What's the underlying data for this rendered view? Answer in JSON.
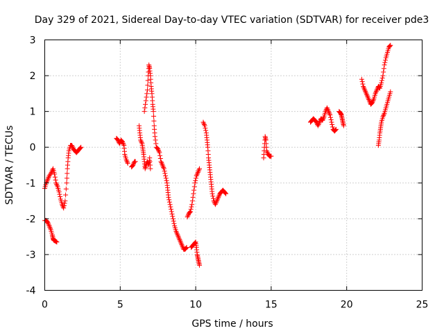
{
  "chart_data": {
    "type": "scatter",
    "title": "Day 329 of 2021, Sidereal Day-to-day VTEC variation (SDTVAR) for receiver pde3",
    "xlabel": "GPS time / hours",
    "ylabel": "SDTVAR / TECUs",
    "xlim": [
      0,
      25
    ],
    "ylim": [
      -4,
      3
    ],
    "xticks": [
      0,
      5,
      10,
      15,
      20,
      25
    ],
    "yticks": [
      -4,
      -3,
      -2,
      -1,
      0,
      1,
      2,
      3
    ],
    "xtick_labels": [
      "0",
      "5",
      "10",
      "15",
      "20",
      "25"
    ],
    "ytick_labels": [
      "-4",
      "-3",
      "-2",
      "-1",
      "0",
      "1",
      "2",
      "3"
    ],
    "grid": true,
    "marker": "+",
    "color": "#ff0000",
    "series": [
      {
        "name": "SDTVAR",
        "segments": [
          [
            [
              0.0,
              -1.15
            ],
            [
              0.1,
              -1.0
            ],
            [
              0.2,
              -0.9
            ],
            [
              0.3,
              -0.8
            ],
            [
              0.45,
              -0.7
            ],
            [
              0.55,
              -0.6
            ],
            [
              0.65,
              -0.75
            ],
            [
              0.75,
              -1.0
            ],
            [
              0.85,
              -1.1
            ],
            [
              0.95,
              -1.25
            ],
            [
              1.05,
              -1.45
            ],
            [
              1.15,
              -1.6
            ],
            [
              1.25,
              -1.7
            ],
            [
              1.35,
              -1.5
            ],
            [
              1.45,
              -1.0
            ],
            [
              1.5,
              -0.6
            ],
            [
              1.55,
              -0.3
            ],
            [
              1.6,
              -0.1
            ],
            [
              1.7,
              0.05
            ],
            [
              1.8,
              0.05
            ],
            [
              1.9,
              -0.05
            ],
            [
              2.0,
              -0.1
            ],
            [
              2.1,
              -0.15
            ],
            [
              2.2,
              -0.1
            ],
            [
              2.3,
              -0.05
            ],
            [
              2.4,
              0.0
            ]
          ],
          [
            [
              0.0,
              -2.05
            ],
            [
              0.1,
              -2.05
            ],
            [
              0.2,
              -2.1
            ],
            [
              0.3,
              -2.2
            ],
            [
              0.4,
              -2.3
            ],
            [
              0.5,
              -2.45
            ],
            [
              0.55,
              -2.55
            ],
            [
              0.6,
              -2.6
            ],
            [
              0.7,
              -2.62
            ],
            [
              0.8,
              -2.65
            ]
          ],
          [
            [
              4.75,
              0.25
            ],
            [
              4.85,
              0.2
            ],
            [
              4.95,
              0.1
            ],
            [
              5.05,
              0.2
            ],
            [
              5.15,
              0.15
            ],
            [
              5.25,
              0.05
            ],
            [
              5.3,
              -0.2
            ],
            [
              5.4,
              -0.35
            ],
            [
              5.5,
              -0.45
            ]
          ],
          [
            [
              5.75,
              -0.55
            ],
            [
              5.85,
              -0.5
            ],
            [
              5.95,
              -0.4
            ],
            [
              6.0,
              -0.4
            ]
          ],
          [
            [
              6.25,
              0.6
            ],
            [
              6.3,
              0.4
            ],
            [
              6.35,
              0.2
            ],
            [
              6.45,
              0.1
            ],
            [
              6.5,
              -0.05
            ],
            [
              6.55,
              -0.2
            ],
            [
              6.6,
              -0.4
            ],
            [
              6.65,
              -0.6
            ],
            [
              6.7,
              -0.5
            ],
            [
              6.8,
              -0.4
            ],
            [
              6.9,
              -0.5
            ],
            [
              6.95,
              -0.3
            ],
            [
              7.0,
              -0.6
            ]
          ],
          [
            [
              6.6,
              1.0
            ],
            [
              6.7,
              1.3
            ],
            [
              6.8,
              1.6
            ],
            [
              6.85,
              2.0
            ],
            [
              6.9,
              2.3
            ],
            [
              6.95,
              2.2
            ],
            [
              7.0,
              2.0
            ],
            [
              7.05,
              1.7
            ],
            [
              7.1,
              1.5
            ],
            [
              7.15,
              1.2
            ],
            [
              7.2,
              1.0
            ],
            [
              7.25,
              0.6
            ],
            [
              7.3,
              0.3
            ],
            [
              7.4,
              0.0
            ],
            [
              7.5,
              -0.05
            ],
            [
              7.6,
              -0.15
            ],
            [
              7.7,
              -0.4
            ],
            [
              7.8,
              -0.5
            ],
            [
              7.9,
              -0.6
            ],
            [
              8.0,
              -0.8
            ],
            [
              8.1,
              -1.0
            ],
            [
              8.15,
              -1.2
            ],
            [
              8.2,
              -1.4
            ],
            [
              8.3,
              -1.6
            ],
            [
              8.4,
              -1.8
            ],
            [
              8.5,
              -2.0
            ],
            [
              8.6,
              -2.2
            ],
            [
              8.7,
              -2.35
            ],
            [
              8.8,
              -2.45
            ],
            [
              8.9,
              -2.55
            ],
            [
              9.0,
              -2.65
            ],
            [
              9.1,
              -2.75
            ],
            [
              9.2,
              -2.85
            ],
            [
              9.3,
              -2.85
            ],
            [
              9.4,
              -2.8
            ]
          ],
          [
            [
              9.45,
              -1.95
            ],
            [
              9.55,
              -1.85
            ],
            [
              9.65,
              -1.8
            ],
            [
              9.75,
              -1.6
            ],
            [
              9.85,
              -1.3
            ],
            [
              9.95,
              -1.0
            ],
            [
              10.05,
              -0.8
            ],
            [
              10.15,
              -0.7
            ],
            [
              10.25,
              -0.6
            ]
          ],
          [
            [
              9.7,
              -2.8
            ],
            [
              9.8,
              -2.75
            ],
            [
              9.9,
              -2.7
            ],
            [
              10.0,
              -2.65
            ],
            [
              10.05,
              -2.8
            ],
            [
              10.1,
              -3.0
            ],
            [
              10.15,
              -3.1
            ],
            [
              10.2,
              -3.2
            ],
            [
              10.25,
              -3.3
            ]
          ],
          [
            [
              10.5,
              0.7
            ],
            [
              10.6,
              0.6
            ],
            [
              10.7,
              0.4
            ],
            [
              10.75,
              0.2
            ],
            [
              10.8,
              0.0
            ],
            [
              10.85,
              -0.3
            ],
            [
              10.9,
              -0.5
            ],
            [
              10.95,
              -0.7
            ],
            [
              11.0,
              -0.9
            ],
            [
              11.05,
              -1.1
            ],
            [
              11.1,
              -1.3
            ],
            [
              11.2,
              -1.5
            ],
            [
              11.3,
              -1.6
            ],
            [
              11.4,
              -1.5
            ],
            [
              11.5,
              -1.4
            ],
            [
              11.6,
              -1.3
            ],
            [
              11.7,
              -1.25
            ],
            [
              11.8,
              -1.2
            ],
            [
              11.9,
              -1.25
            ],
            [
              12.0,
              -1.3
            ]
          ],
          [
            [
              14.5,
              -0.3
            ],
            [
              14.55,
              0.0
            ],
            [
              14.6,
              0.3
            ],
            [
              14.65,
              0.2
            ],
            [
              14.7,
              -0.1
            ],
            [
              14.8,
              -0.2
            ],
            [
              14.9,
              -0.25
            ],
            [
              15.0,
              -0.25
            ]
          ],
          [
            [
              17.6,
              0.7
            ],
            [
              17.7,
              0.75
            ],
            [
              17.8,
              0.8
            ],
            [
              17.9,
              0.75
            ],
            [
              18.0,
              0.7
            ],
            [
              18.1,
              0.6
            ],
            [
              18.2,
              0.7
            ],
            [
              18.3,
              0.8
            ],
            [
              18.4,
              0.75
            ],
            [
              18.5,
              0.85
            ],
            [
              18.6,
              1.0
            ],
            [
              18.7,
              1.1
            ],
            [
              18.8,
              1.0
            ],
            [
              18.9,
              0.9
            ],
            [
              19.0,
              0.7
            ],
            [
              19.1,
              0.5
            ],
            [
              19.2,
              0.45
            ],
            [
              19.3,
              0.5
            ]
          ],
          [
            [
              19.5,
              1.0
            ],
            [
              19.6,
              0.95
            ],
            [
              19.65,
              0.9
            ],
            [
              19.7,
              0.8
            ],
            [
              19.75,
              0.7
            ],
            [
              19.8,
              0.6
            ]
          ],
          [
            [
              21.0,
              1.9
            ],
            [
              21.1,
              1.7
            ],
            [
              21.2,
              1.6
            ],
            [
              21.3,
              1.5
            ],
            [
              21.4,
              1.4
            ],
            [
              21.5,
              1.3
            ],
            [
              21.6,
              1.2
            ],
            [
              21.7,
              1.25
            ],
            [
              21.8,
              1.35
            ],
            [
              21.9,
              1.5
            ],
            [
              22.0,
              1.6
            ],
            [
              22.1,
              1.7
            ],
            [
              22.2,
              1.65
            ],
            [
              22.3,
              1.8
            ],
            [
              22.4,
              2.0
            ],
            [
              22.5,
              2.3
            ],
            [
              22.6,
              2.5
            ],
            [
              22.7,
              2.65
            ],
            [
              22.8,
              2.8
            ],
            [
              22.9,
              2.85
            ]
          ],
          [
            [
              22.1,
              0.05
            ],
            [
              22.15,
              0.2
            ],
            [
              22.2,
              0.4
            ],
            [
              22.25,
              0.55
            ],
            [
              22.3,
              0.7
            ],
            [
              22.4,
              0.85
            ],
            [
              22.5,
              0.95
            ],
            [
              22.6,
              1.1
            ],
            [
              22.7,
              1.25
            ],
            [
              22.8,
              1.4
            ],
            [
              22.9,
              1.55
            ]
          ]
        ]
      }
    ]
  }
}
